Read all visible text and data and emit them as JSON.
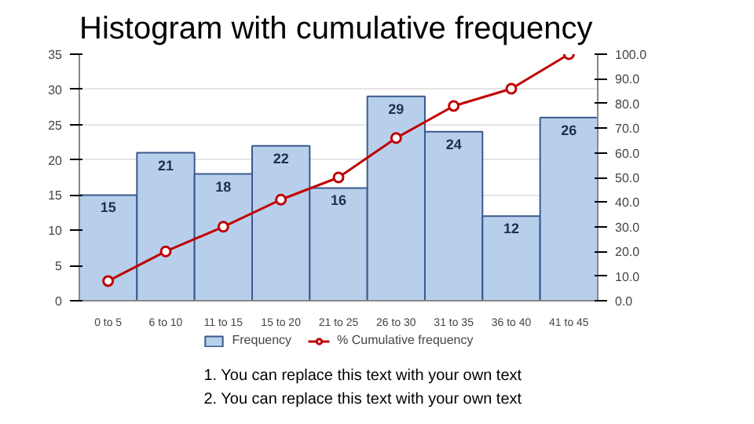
{
  "chart_data": {
    "type": "bar",
    "title": "Histogram with cumulative frequency",
    "categories": [
      "0 to 5",
      "6 to 10",
      "11 to 15",
      "15 to 20",
      "21 to 25",
      "26 to 30",
      "31 to 35",
      "36 to 40",
      "41 to 45"
    ],
    "series": [
      {
        "name": "Frequency",
        "type": "bar",
        "color": "#b8cfec",
        "values": [
          15,
          21,
          18,
          22,
          16,
          29,
          24,
          12,
          26
        ],
        "value_labels": [
          "15",
          "21",
          "18",
          "22",
          "16",
          "29",
          "24",
          "12",
          "26"
        ]
      },
      {
        "name": "% Cumulative frequency",
        "type": "line",
        "axis": "y2",
        "color": "#c00000",
        "marker": "circle",
        "values": [
          8,
          20,
          30,
          41,
          50,
          66,
          79,
          86,
          100
        ]
      }
    ],
    "ylim": [
      0,
      35
    ],
    "yticks": [
      0,
      5,
      10,
      15,
      20,
      25,
      30,
      35
    ],
    "y2lim": [
      0,
      100
    ],
    "y2ticks": [
      {
        "value": 0,
        "label": "0.0"
      },
      {
        "value": 10,
        "label": "10.0"
      },
      {
        "value": 20,
        "label": "20.0"
      },
      {
        "value": 30,
        "label": "30.0"
      },
      {
        "value": 40,
        "label": "40.0"
      },
      {
        "value": 50,
        "label": "50.0"
      },
      {
        "value": 60,
        "label": "60.0"
      },
      {
        "value": 70,
        "label": "70.0"
      },
      {
        "value": 80,
        "label": "80.0"
      },
      {
        "value": 90,
        "label": "90.0"
      },
      {
        "value": 100,
        "label": "100.0"
      }
    ],
    "grid": "y",
    "legend": "bottom",
    "annotations": [
      "1.  You can replace this text with your own text",
      "2.  You can replace this text with your own text"
    ]
  }
}
